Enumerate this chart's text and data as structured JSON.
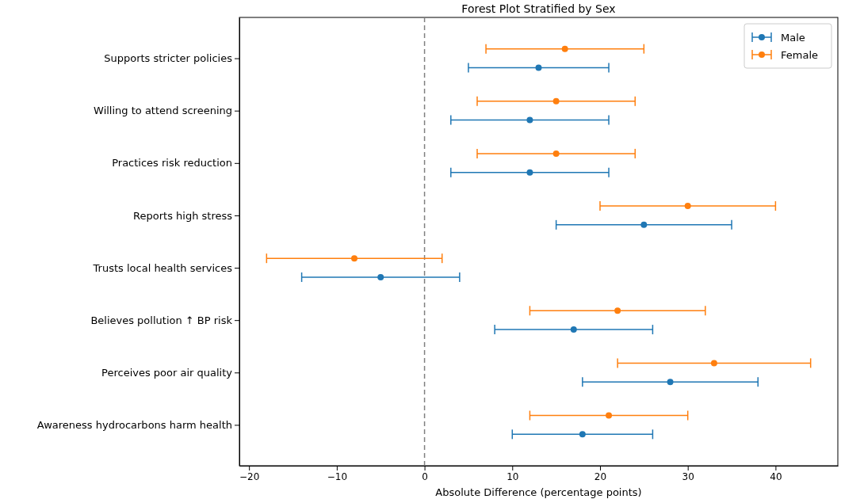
{
  "chart_data": {
    "type": "scatter",
    "title": "Forest Plot Stratified by Sex",
    "xlabel": "Absolute Difference (percentage points)",
    "orientation": "horizontal",
    "categories": [
      "Supports stricter policies",
      "Willing to attend screening",
      "Practices risk reduction",
      "Reports high stress",
      "Trusts local health services",
      "Believes pollution ↑ BP risk",
      "Perceives poor air quality",
      "Awareness hydrocarbons harm health"
    ],
    "series": [
      {
        "name": "Male",
        "color": "#1f77b4",
        "values": [
          13,
          12,
          12,
          25,
          -5,
          17,
          28,
          18
        ],
        "errors": [
          [
            5,
            21
          ],
          [
            3,
            21
          ],
          [
            3,
            21
          ],
          [
            15,
            35
          ],
          [
            -14,
            4
          ],
          [
            8,
            26
          ],
          [
            18,
            38
          ],
          [
            10,
            26
          ]
        ]
      },
      {
        "name": "Female",
        "color": "#ff7f0e",
        "values": [
          16,
          15,
          15,
          30,
          -8,
          22,
          33,
          21
        ],
        "errors": [
          [
            7,
            25
          ],
          [
            6,
            24
          ],
          [
            6,
            24
          ],
          [
            20,
            40
          ],
          [
            -18,
            2
          ],
          [
            12,
            32
          ],
          [
            22,
            44
          ],
          [
            12,
            30
          ]
        ]
      }
    ],
    "xlim": [
      -21.1,
      47.1
    ],
    "xticks": [
      -20,
      -10,
      0,
      10,
      20,
      30,
      40
    ],
    "marker": "circle",
    "legend": "top right",
    "grid": false,
    "ref_lines": [
      {
        "axis": "x",
        "value": 0,
        "color": "#808080",
        "line_style": "dashed"
      }
    ]
  }
}
